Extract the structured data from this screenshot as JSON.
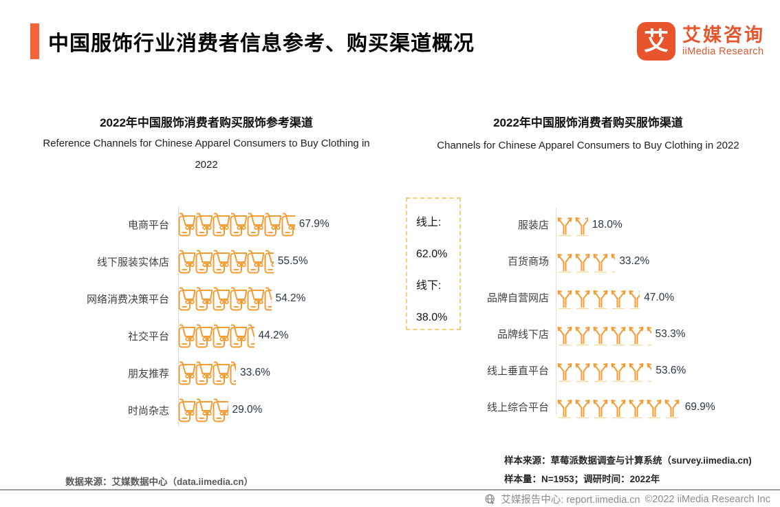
{
  "header": {
    "title": "中国服饰行业消费者信息参考、购买渠道概况",
    "logo_glyph": "艾",
    "logo_cn": "艾媒咨询",
    "logo_en": "iiMedia Research",
    "accent_color": "#F2653A",
    "logo_color": "#E8542C"
  },
  "chart_data": [
    {
      "type": "bar",
      "subtype": "pictogram-bar",
      "icon": "phone-cart-icon",
      "icon_color": "#F49B33",
      "unit_percent_per_icon": 10,
      "title": "2022年中国服饰消费者购买服饰参考渠道",
      "subtitle": "Reference Channels for Chinese Apparel Consumers to Buy Clothing in 2022",
      "categories": [
        "电商平台",
        "线下服装实体店",
        "网络消费决策平台",
        "社交平台",
        "朋友推荐",
        "时尚杂志"
      ],
      "values": [
        67.9,
        55.5,
        54.2,
        44.2,
        33.6,
        29.0
      ],
      "value_labels": [
        "67.9%",
        "55.5%",
        "54.2%",
        "44.2%",
        "33.6%",
        "29.0%"
      ],
      "xlim": [
        0,
        100
      ],
      "grid": false,
      "legend": "none"
    },
    {
      "type": "bar",
      "subtype": "pictogram-bar",
      "icon": "clothes-rack-icon",
      "icon_color": "#F49B33",
      "unit_percent_per_icon": 10,
      "title": "2022年中国服饰消费者购买服饰渠道",
      "subtitle": "Channels for Chinese Apparel Consumers to Buy Clothing in 2022",
      "categories": [
        "服装店",
        "百货商场",
        "品牌自营网店",
        "品牌线下店",
        "线上垂直平台",
        "线上综合平台"
      ],
      "values": [
        18.0,
        33.2,
        47.0,
        53.3,
        53.6,
        69.9
      ],
      "value_labels": [
        "18.0%",
        "33.2%",
        "47.0%",
        "53.3%",
        "53.6%",
        "69.9%"
      ],
      "xlim": [
        0,
        100
      ],
      "grid": false,
      "legend": "none",
      "annotation": {
        "online_label": "线上:",
        "online_value": "62.0%",
        "offline_label": "线下:",
        "offline_value": "38.0%",
        "border_color": "#F6CE77"
      }
    }
  ],
  "footer": {
    "left_source": "数据来源：艾媒数据中心（data.iimedia.cn）",
    "sample_source": "样本来源：草莓派数据调查与计算系统（survey.iimedia.cn)",
    "sample_size": "样本量：N=1953；调研时间：2022年",
    "report_center": "艾媒报告中心: report.iimedia.cn",
    "copyright": "©2022  iiMedia Research Inc"
  }
}
